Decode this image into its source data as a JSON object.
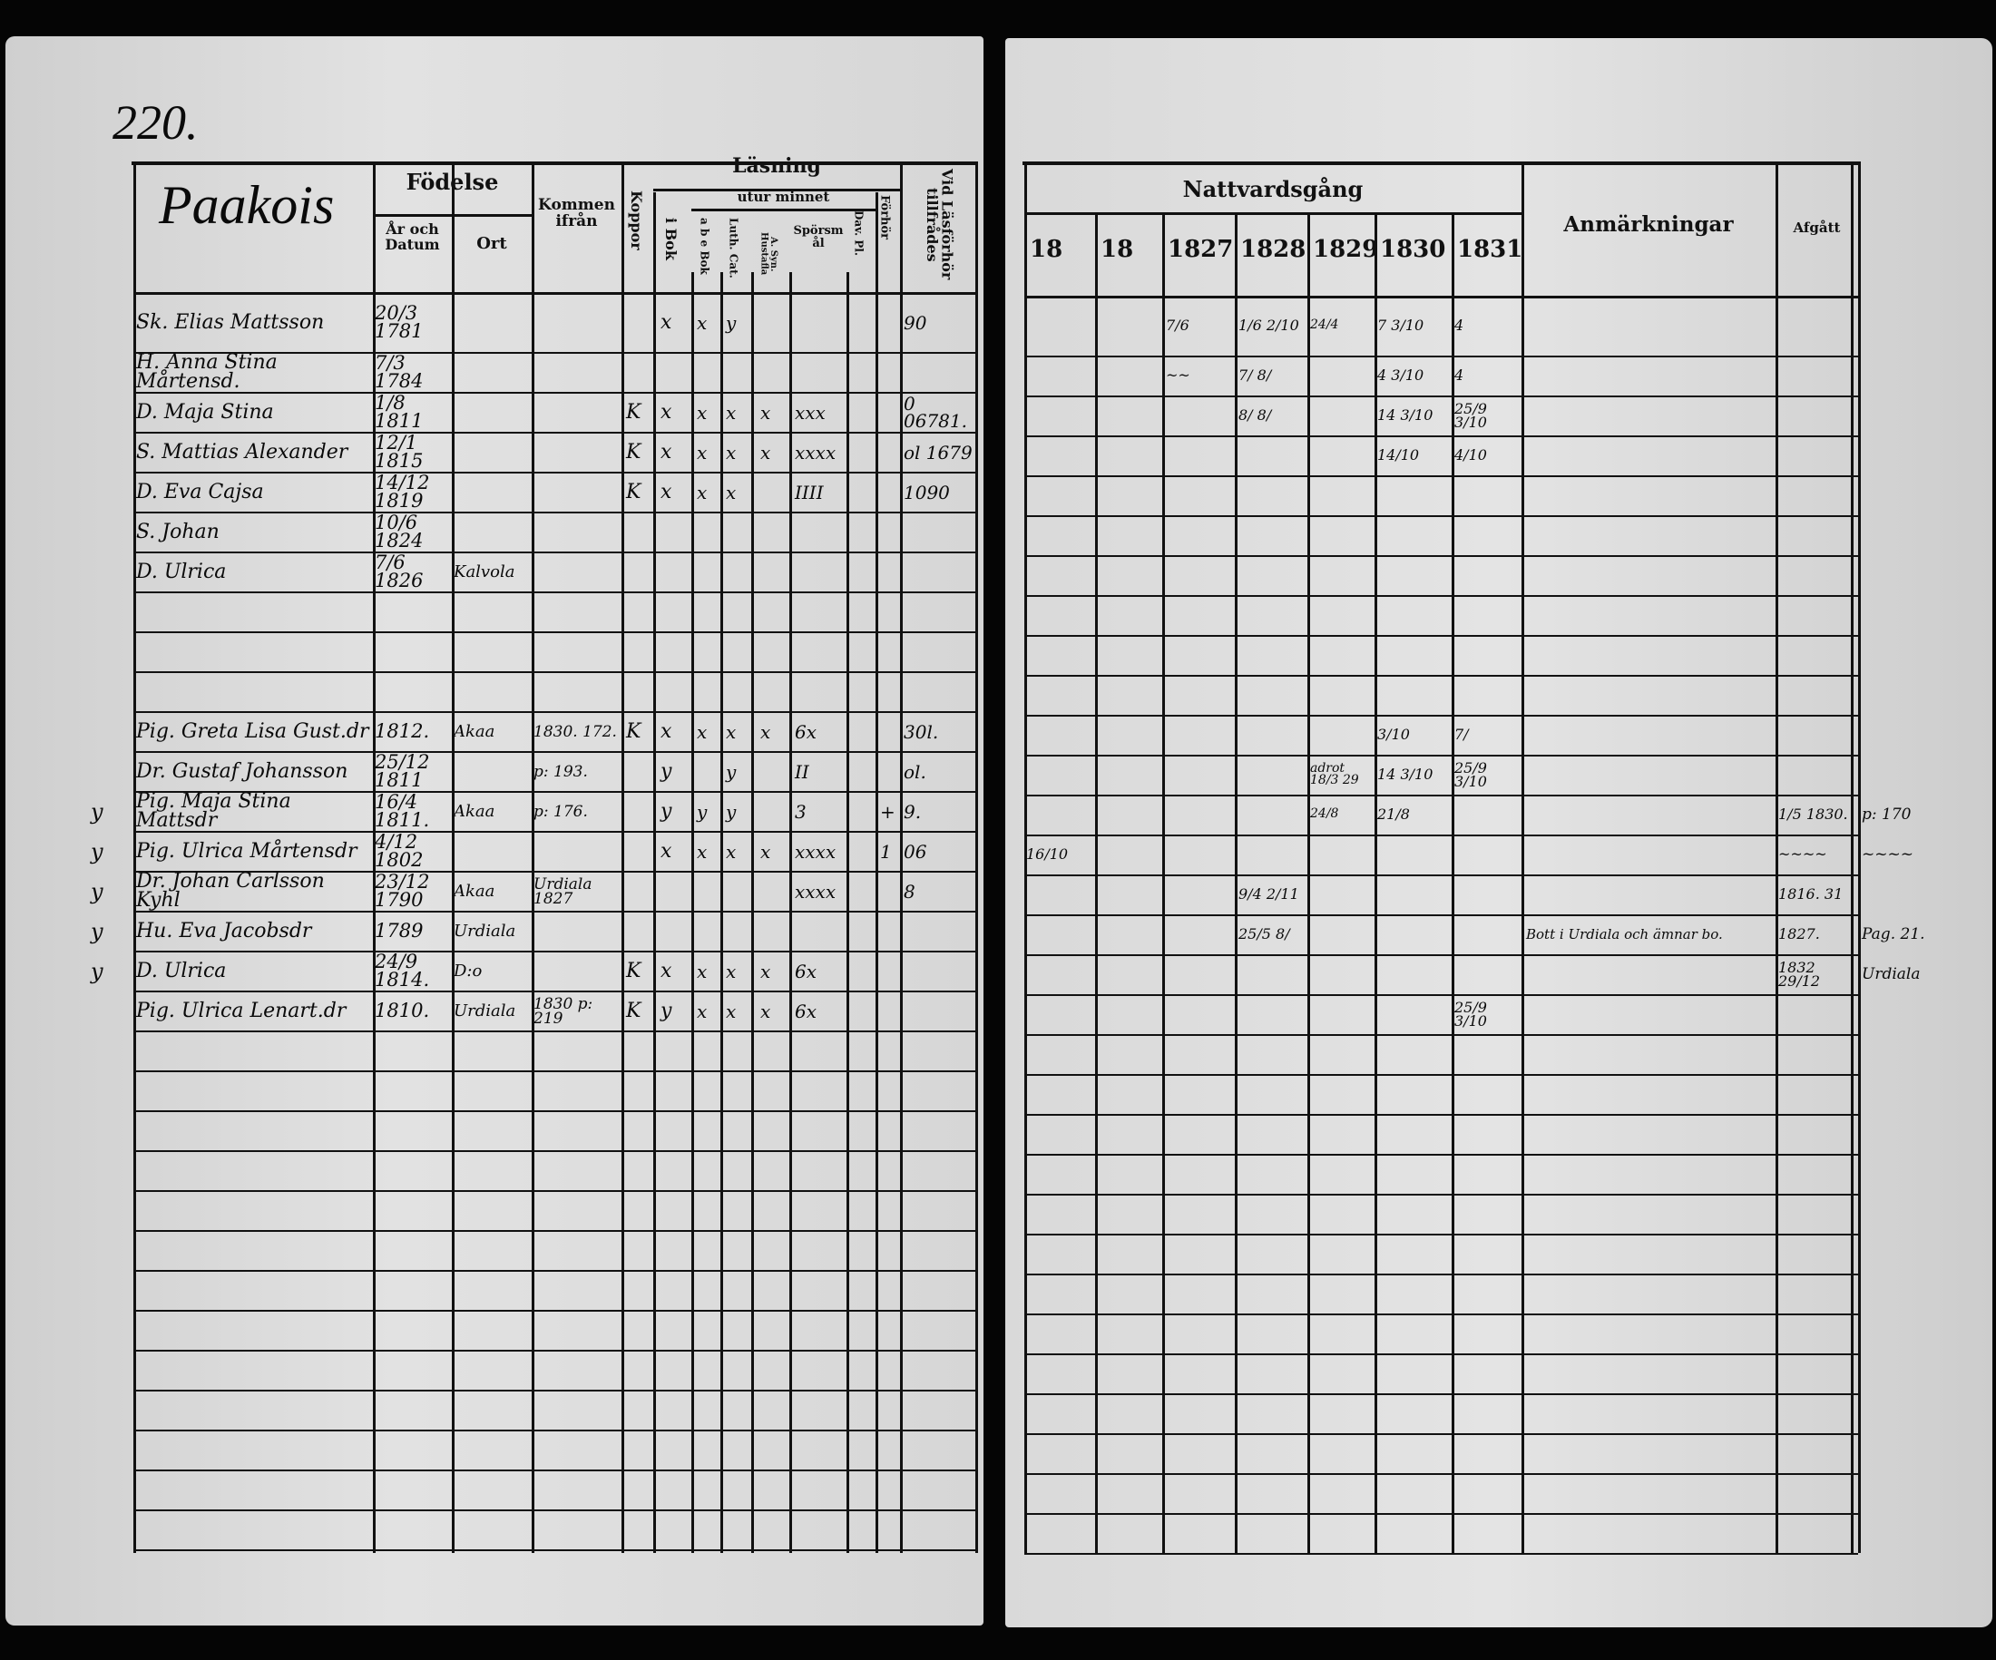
{
  "page_number": "220.",
  "village": "Paakois",
  "left_header": {
    "fodelse": "Födelse",
    "ar_och_datum": "År och Datum",
    "ort": "Ort",
    "kommen_ifran": "Kommen ifrån",
    "koppor": "Koppor",
    "lasning": "Läsning",
    "utur_minnet": "utur minnet",
    "i_bok": "i Bok",
    "abe_bok": "a b e Bok",
    "luth_cat": "Luth. Cat.",
    "a_syn": "A. Syn. Hustafla",
    "sporsmal": "Spörsmål",
    "dav_pl": "Dav. Pl.",
    "forhor": "Förhör",
    "vid_lasforhor": "Vid Läsförhör tillfrådes"
  },
  "right_header": {
    "nattvardsgang": "Nattvardsgång",
    "years": [
      "18",
      "18",
      "1827",
      "1828",
      "1829",
      "1830",
      "1831"
    ],
    "anmarkningar": "Anmärkningar",
    "afgatt": "Afgått"
  },
  "rows": [
    {
      "row": 0,
      "name": "Sk. Elias Mattsson",
      "birth": "20/3 1781",
      "ibok": "x",
      "abe": "x",
      "luth": "y",
      "vid": "90",
      "y1827": "7/6",
      "y1828": "1/6  2/10",
      "y1829": "24/4",
      "y1830": "7 3/10",
      "y1831": "4"
    },
    {
      "row": 1,
      "name": "H. Anna Stina Mårtensd.",
      "birth": "7/3 1784",
      "y1827": "~~",
      "y1828": "7/  8/",
      "y1830": "4 3/10",
      "y1831": "4"
    },
    {
      "row": 2,
      "name": "D. Maja Stina",
      "birth": "1/8 1811",
      "koppor": "K",
      "ibok": "x",
      "abe": "x",
      "luth": "x",
      "asyn": "x",
      "spors": "xxx",
      "vid": "0 06781.",
      "y1828": "8/  8/",
      "y1830": "14 3/10",
      "y1831": "25/9 3/10"
    },
    {
      "row": 3,
      "name": "S. Mattias Alexander",
      "birth": "12/1 1815",
      "koppor": "K",
      "ibok": "x",
      "abe": "x",
      "luth": "x",
      "asyn": "x",
      "spors": "xxxx",
      "vid": "ol 1679",
      "y1830": "14/10",
      "y1831": "4/10"
    },
    {
      "row": 4,
      "name": "D. Eva Cajsa",
      "birth": "14/12 1819",
      "koppor": "K",
      "ibok": "x",
      "abe": "x",
      "luth": "x",
      "spors": "IIII",
      "vid": "1090"
    },
    {
      "row": 5,
      "name": "S. Johan",
      "birth": "10/6 1824"
    },
    {
      "row": 6,
      "name": "D. Ulrica",
      "birth": "7/6 1826",
      "ort": "Kalvola"
    },
    {
      "row": 10,
      "name": "Pig. Greta Lisa Gust.dr",
      "birth": "1812.",
      "ort": "Akaa",
      "from": "1830. 172.",
      "koppor": "K",
      "ibok": "x",
      "abe": "x",
      "luth": "x",
      "asyn": "x",
      "spors": "6x",
      "vid": "30l.",
      "y1830": "3/10",
      "y1831": "7/"
    },
    {
      "row": 11,
      "name": "Dr. Gustaf Johansson",
      "birth": "25/12 1811",
      "from": "p: 193.",
      "ibok": "y",
      "luth": "y",
      "spors": "II",
      "vid": "ol.",
      "y1829": "adrot 18/3 29",
      "y1830": "14 3/10",
      "y1831": "25/9 3/10"
    },
    {
      "row": 12,
      "margin": "y",
      "name": "Pig. Maja Stina Mattsdr",
      "birth": "16/4 1811.",
      "ort": "Akaa",
      "from": "p: 176.",
      "ibok": "y",
      "abe": "y",
      "luth": "y",
      "spors": "3",
      "forar": "+",
      "vid": "9.",
      "y1829": "24/8",
      "y1830": "21/8",
      "afgatt": "1/5 1830.",
      "beyond": "p: 170"
    },
    {
      "row": 13,
      "margin": "y",
      "name": "Pig. Ulrica Mårtensdr",
      "birth": "4/12 1802",
      "ibok": "x",
      "abe": "x",
      "luth": "x",
      "asyn": "x",
      "spors": "xxxx",
      "forar": "1",
      "vid": "06",
      "y18a": "16/10",
      "afgatt": "~~~~",
      "beyond": "~~~~"
    },
    {
      "row": 14,
      "margin": "y",
      "name": "Dr. Johan Carlsson Kyhl",
      "birth": "23/12 1790",
      "ort": "Akaa",
      "from": "Urdiala 1827",
      "spors": "xxxx",
      "vid": "8",
      "y1828": "9/4  2/11",
      "afgatt": "1816. 31"
    },
    {
      "row": 15,
      "margin": "y",
      "name": "Hu. Eva Jacobsdr",
      "birth": "1789",
      "ort": "Urdiala",
      "y1828": "25/5  8/",
      "anm": "Bott i Urdiala och ämnar bo.",
      "afgatt": "1827.",
      "beyond": "Pag. 21."
    },
    {
      "row": 16,
      "margin": "y",
      "name": "D. Ulrica",
      "birth": "24/9 1814.",
      "ort": "D:o",
      "koppor": "K",
      "ibok": "x",
      "abe": "x",
      "luth": "x",
      "asyn": "x",
      "spors": "6x",
      "afgatt": "1832 29/12",
      "beyond": "Urdiala"
    },
    {
      "row": 17,
      "name": "Pig. Ulrica Lenart.dr",
      "birth": "1810.",
      "ort": "Urdiala",
      "from": "1830 p: 219",
      "koppor": "K",
      "ibok": "y",
      "abe": "x",
      "luth": "x",
      "asyn": "x",
      "spors": "6x",
      "y1831": "25/9 3/10"
    }
  ]
}
